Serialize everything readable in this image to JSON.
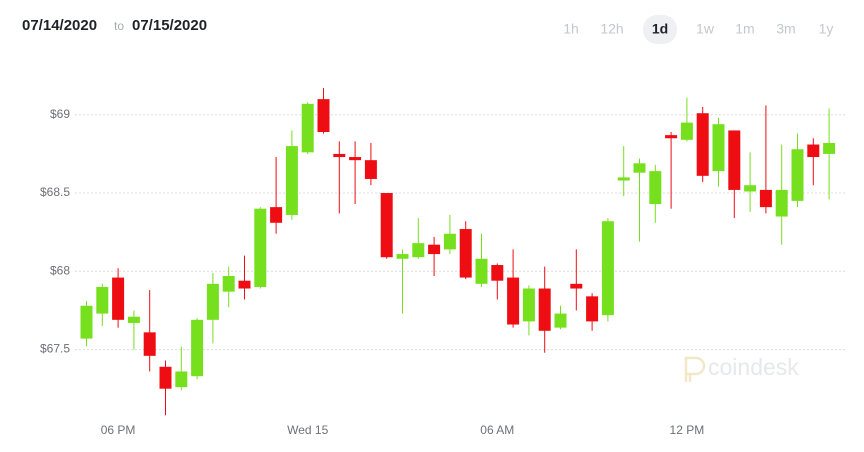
{
  "header": {
    "start_date": "07/14/2020",
    "to": "to",
    "end_date": "07/15/2020",
    "ranges": [
      "1h",
      "12h",
      "1d",
      "1w",
      "1m",
      "3m",
      "1y"
    ]
  },
  "watermark": "coindesk",
  "chart_data": {
    "type": "candlestick",
    "categories": [
      null,
      null,
      "06 PM",
      null,
      null,
      null,
      null,
      null,
      null,
      null,
      null,
      null,
      null,
      null,
      "Wed 15",
      null,
      null,
      null,
      null,
      null,
      null,
      null,
      null,
      null,
      null,
      null,
      "06 AM",
      null,
      null,
      null,
      null,
      null,
      null,
      null,
      null,
      null,
      null,
      null,
      "12 PM",
      null,
      null,
      null,
      null,
      null,
      null,
      null,
      null,
      null
    ],
    "open": [
      67.57,
      67.73,
      67.96,
      67.67,
      67.61,
      67.39,
      67.26,
      67.33,
      67.69,
      67.87,
      67.94,
      67.9,
      68.41,
      68.36,
      68.76,
      69.1,
      68.75,
      68.73,
      68.71,
      68.5,
      68.08,
      68.09,
      68.17,
      68.14,
      68.27,
      67.92,
      68.04,
      67.96,
      67.68,
      67.89,
      67.64,
      67.92,
      67.84,
      67.72,
      68.58,
      68.63,
      68.43,
      68.87,
      68.84,
      69.01,
      68.64,
      68.9,
      68.51,
      68.52,
      68.35,
      68.45,
      68.81,
      68.75
    ],
    "high": [
      67.81,
      67.92,
      68.02,
      67.75,
      67.88,
      67.43,
      67.52,
      67.7,
      67.99,
      68.03,
      68.1,
      68.41,
      68.73,
      68.9,
      69.08,
      69.17,
      68.83,
      68.83,
      68.82,
      68.5,
      68.14,
      68.34,
      68.22,
      68.36,
      68.32,
      68.24,
      68.05,
      68.14,
      67.91,
      68.03,
      67.78,
      68.14,
      67.86,
      68.34,
      68.8,
      68.72,
      68.68,
      68.89,
      69.11,
      69.05,
      68.98,
      68.9,
      68.76,
      69.06,
      68.81,
      68.88,
      68.85,
      69.04
    ],
    "low": [
      67.52,
      67.65,
      67.64,
      67.5,
      67.36,
      67.08,
      67.24,
      67.31,
      67.54,
      67.77,
      67.82,
      67.89,
      68.24,
      68.33,
      68.75,
      68.88,
      68.37,
      68.43,
      68.55,
      68.08,
      67.73,
      68.08,
      67.97,
      68.11,
      67.95,
      67.9,
      67.82,
      67.64,
      67.59,
      67.48,
      67.63,
      67.75,
      67.62,
      67.68,
      68.48,
      68.19,
      68.31,
      68.4,
      68.83,
      68.57,
      68.54,
      68.34,
      68.38,
      68.37,
      68.17,
      68.41,
      68.55,
      68.46
    ],
    "close": [
      67.78,
      67.9,
      67.69,
      67.71,
      67.46,
      67.25,
      67.36,
      67.69,
      67.92,
      67.97,
      67.89,
      68.4,
      68.31,
      68.8,
      69.07,
      68.89,
      68.73,
      68.71,
      68.59,
      68.09,
      68.11,
      68.18,
      68.11,
      68.24,
      67.96,
      68.08,
      67.94,
      67.66,
      67.89,
      67.62,
      67.73,
      67.89,
      67.68,
      68.32,
      68.6,
      68.69,
      68.64,
      68.85,
      68.95,
      68.61,
      68.94,
      68.52,
      68.55,
      68.41,
      68.52,
      68.78,
      68.73,
      68.82
    ],
    "up_color": "#77e01e",
    "down_color": "#ee0d12",
    "ylim": [
      67.05,
      69.35
    ],
    "yticks": [
      {
        "value": 67.5,
        "label": "$67.5"
      },
      {
        "value": 68,
        "label": "$68"
      },
      {
        "value": 68.5,
        "label": "$68.5"
      },
      {
        "value": 69,
        "label": "$69"
      }
    ],
    "grid": true
  }
}
